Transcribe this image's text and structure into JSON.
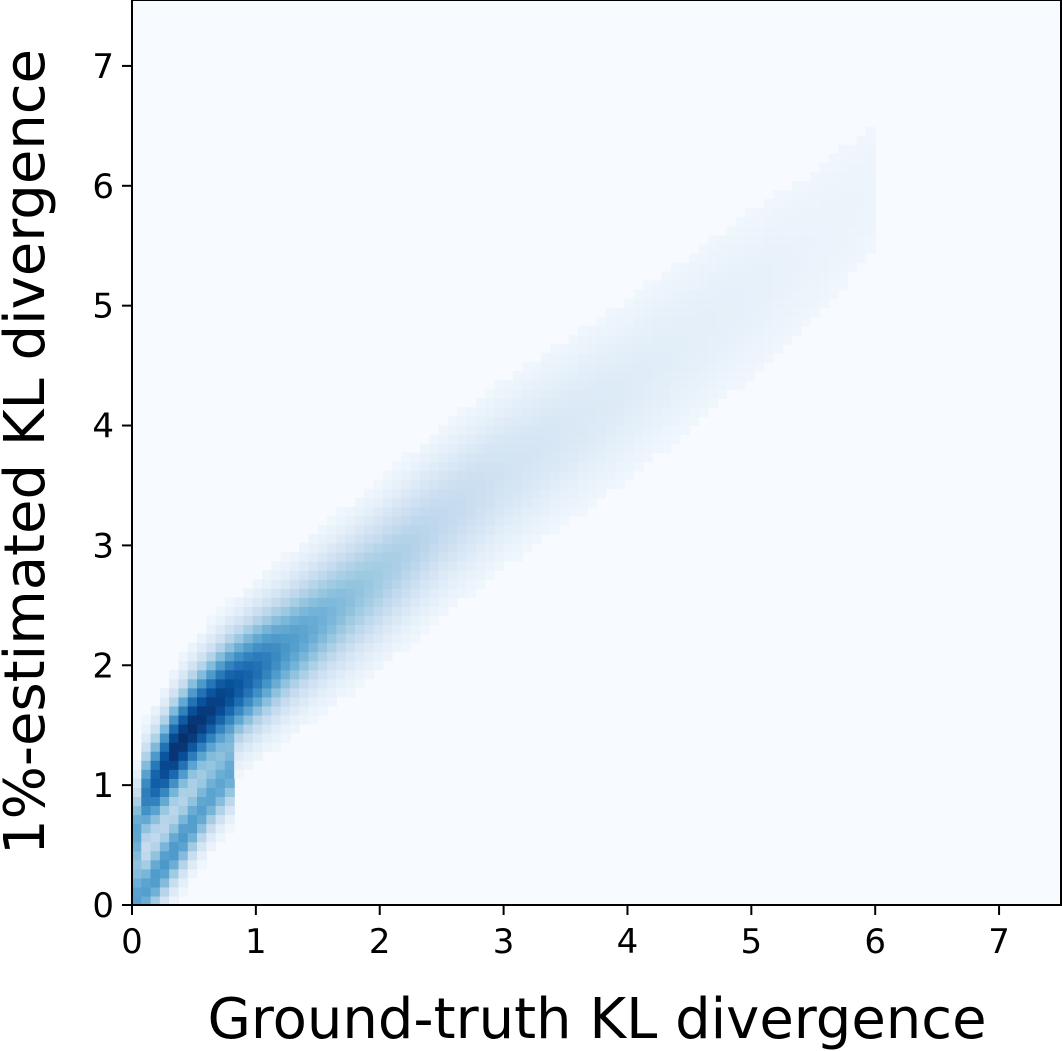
{
  "chart_data": {
    "type": "heatmap",
    "title": "",
    "xlabel": "Ground-truth KL divergence",
    "ylabel": "1%-estimated KL divergence",
    "xlim": [
      0,
      7.5
    ],
    "ylim": [
      0,
      7.55
    ],
    "xticks": [
      "0",
      "1",
      "2",
      "3",
      "4",
      "5",
      "6",
      "7"
    ],
    "yticks": [
      "0",
      "1",
      "2",
      "3",
      "4",
      "5",
      "6",
      "7"
    ],
    "colormap": "Blues",
    "grid": false,
    "legend": "none",
    "density_ridge": [
      {
        "x": 0.0,
        "y": 0.45,
        "density": 0.35
      },
      {
        "x": 0.1,
        "y": 0.9,
        "density": 0.6
      },
      {
        "x": 0.2,
        "y": 1.05,
        "density": 0.8
      },
      {
        "x": 0.35,
        "y": 1.3,
        "density": 1.0
      },
      {
        "x": 0.5,
        "y": 1.5,
        "density": 1.0
      },
      {
        "x": 0.75,
        "y": 1.75,
        "density": 0.9
      },
      {
        "x": 1.0,
        "y": 1.95,
        "density": 0.7
      },
      {
        "x": 1.25,
        "y": 2.15,
        "density": 0.5
      },
      {
        "x": 1.5,
        "y": 2.35,
        "density": 0.4
      },
      {
        "x": 1.75,
        "y": 2.55,
        "density": 0.32
      },
      {
        "x": 2.0,
        "y": 2.75,
        "density": 0.26
      },
      {
        "x": 2.5,
        "y": 3.2,
        "density": 0.17
      },
      {
        "x": 3.0,
        "y": 3.6,
        "density": 0.11
      },
      {
        "x": 3.5,
        "y": 3.95,
        "density": 0.08
      },
      {
        "x": 4.0,
        "y": 4.3,
        "density": 0.06
      },
      {
        "x": 4.5,
        "y": 4.7,
        "density": 0.045
      },
      {
        "x": 5.0,
        "y": 5.1,
        "density": 0.035
      },
      {
        "x": 5.5,
        "y": 5.5,
        "density": 0.025
      },
      {
        "x": 6.0,
        "y": 6.0,
        "density": 0.02
      }
    ],
    "secondary_ridge": [
      {
        "x": 0.05,
        "y": 0.05,
        "density": 0.45
      },
      {
        "x": 0.2,
        "y": 0.25,
        "density": 0.5
      },
      {
        "x": 0.4,
        "y": 0.55,
        "density": 0.5
      },
      {
        "x": 0.6,
        "y": 0.85,
        "density": 0.45
      },
      {
        "x": 0.8,
        "y": 1.1,
        "density": 0.4
      }
    ]
  }
}
